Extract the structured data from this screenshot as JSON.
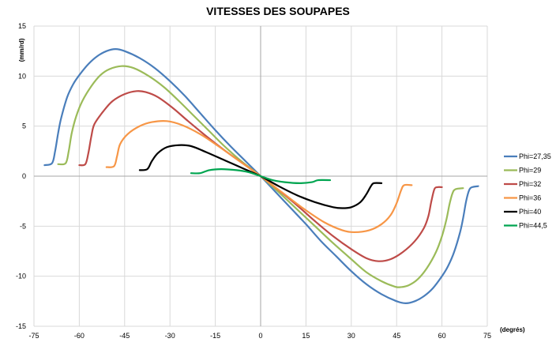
{
  "chart_data": {
    "type": "line",
    "title": "VITESSES DES SOUPAPES",
    "xlabel": "(degrés)",
    "ylabel": "(mm/rd)",
    "xlim": [
      -75,
      75
    ],
    "ylim": [
      -15,
      15
    ],
    "xticks": [
      -75,
      -60,
      -45,
      -30,
      -15,
      0,
      15,
      30,
      45,
      60,
      75
    ],
    "xtick_labels": [
      "-75",
      "-60",
      "-45",
      "-30",
      "-15",
      "0",
      "15",
      "30",
      "45",
      "60",
      "75"
    ],
    "yticks": [
      -15,
      -10,
      -5,
      0,
      5,
      10,
      15
    ],
    "ytick_labels": [
      "-15",
      "-10",
      "-5",
      "0",
      "5",
      "10",
      "15"
    ],
    "grid": true,
    "legend_position": "right",
    "series": [
      {
        "name": "Phi=27,35",
        "color": "#4a7ebb",
        "points": [
          [
            -71.5,
            1.1
          ],
          [
            -69,
            1.3
          ],
          [
            -68,
            2.5
          ],
          [
            -67,
            4.3
          ],
          [
            -66,
            5.8
          ],
          [
            -64,
            7.9
          ],
          [
            -62,
            9.2
          ],
          [
            -60,
            10.1
          ],
          [
            -57,
            11.2
          ],
          [
            -54,
            12.0
          ],
          [
            -51,
            12.5
          ],
          [
            -48,
            12.7
          ],
          [
            -45,
            12.5
          ],
          [
            -40,
            11.8
          ],
          [
            -35,
            10.8
          ],
          [
            -30,
            9.5
          ],
          [
            -25,
            8.0
          ],
          [
            -20,
            6.3
          ],
          [
            -15,
            4.6
          ],
          [
            -10,
            3.0
          ],
          [
            -5,
            1.5
          ],
          [
            0,
            0
          ],
          [
            5,
            -1.6
          ],
          [
            10,
            -3.2
          ],
          [
            15,
            -4.8
          ],
          [
            20,
            -6.5
          ],
          [
            25,
            -8.0
          ],
          [
            30,
            -9.5
          ],
          [
            35,
            -10.8
          ],
          [
            40,
            -11.8
          ],
          [
            45,
            -12.5
          ],
          [
            48,
            -12.7
          ],
          [
            51,
            -12.5
          ],
          [
            54,
            -12.0
          ],
          [
            57,
            -11.2
          ],
          [
            60,
            -10.0
          ],
          [
            62,
            -9.0
          ],
          [
            64,
            -7.6
          ],
          [
            66,
            -5.6
          ],
          [
            67,
            -4.2
          ],
          [
            68,
            -2.5
          ],
          [
            69,
            -1.4
          ],
          [
            70,
            -1.1
          ],
          [
            72,
            -1.0
          ]
        ]
      },
      {
        "name": "Phi=29",
        "color": "#9bbb59",
        "points": [
          [
            -67,
            1.2
          ],
          [
            -64.5,
            1.3
          ],
          [
            -63.5,
            2.5
          ],
          [
            -62.5,
            4.3
          ],
          [
            -61,
            6.0
          ],
          [
            -59,
            7.5
          ],
          [
            -56,
            9.0
          ],
          [
            -53,
            10.1
          ],
          [
            -50,
            10.7
          ],
          [
            -46,
            11.0
          ],
          [
            -42,
            10.8
          ],
          [
            -37,
            10.0
          ],
          [
            -32,
            8.9
          ],
          [
            -27,
            7.5
          ],
          [
            -22,
            6.0
          ],
          [
            -17,
            4.5
          ],
          [
            -12,
            3.0
          ],
          [
            -6,
            1.4
          ],
          [
            0,
            0
          ],
          [
            6,
            -1.6
          ],
          [
            12,
            -3.3
          ],
          [
            18,
            -5.0
          ],
          [
            24,
            -6.7
          ],
          [
            30,
            -8.3
          ],
          [
            35,
            -9.6
          ],
          [
            40,
            -10.5
          ],
          [
            44,
            -11.0
          ],
          [
            46,
            -11.1
          ],
          [
            49,
            -10.9
          ],
          [
            52,
            -10.3
          ],
          [
            55,
            -9.2
          ],
          [
            58,
            -7.6
          ],
          [
            60,
            -6.0
          ],
          [
            61.5,
            -4.3
          ],
          [
            62.5,
            -2.8
          ],
          [
            63.5,
            -1.7
          ],
          [
            64.5,
            -1.3
          ],
          [
            67,
            -1.2
          ]
        ]
      },
      {
        "name": "Phi=32",
        "color": "#be4b48",
        "points": [
          [
            -60,
            1.1
          ],
          [
            -58,
            1.2
          ],
          [
            -57,
            2.3
          ],
          [
            -56,
            4.0
          ],
          [
            -55,
            5.2
          ],
          [
            -52,
            6.5
          ],
          [
            -49,
            7.5
          ],
          [
            -45,
            8.2
          ],
          [
            -41,
            8.5
          ],
          [
            -38,
            8.4
          ],
          [
            -34,
            7.9
          ],
          [
            -29,
            6.8
          ],
          [
            -24,
            5.5
          ],
          [
            -18,
            4.0
          ],
          [
            -12,
            2.6
          ],
          [
            -6,
            1.3
          ],
          [
            0,
            0
          ],
          [
            6,
            -1.4
          ],
          [
            12,
            -2.9
          ],
          [
            18,
            -4.5
          ],
          [
            24,
            -6.0
          ],
          [
            30,
            -7.3
          ],
          [
            35,
            -8.2
          ],
          [
            39,
            -8.5
          ],
          [
            43,
            -8.3
          ],
          [
            47,
            -7.6
          ],
          [
            51,
            -6.5
          ],
          [
            54,
            -5.2
          ],
          [
            55.5,
            -4.0
          ],
          [
            56.5,
            -2.5
          ],
          [
            57.5,
            -1.3
          ],
          [
            58.5,
            -1.1
          ],
          [
            60,
            -1.1
          ]
        ]
      },
      {
        "name": "Phi=36",
        "color": "#f79646",
        "points": [
          [
            -51,
            0.9
          ],
          [
            -48.5,
            1.0
          ],
          [
            -47.5,
            2.0
          ],
          [
            -46.5,
            3.2
          ],
          [
            -44,
            4.2
          ],
          [
            -40,
            5.0
          ],
          [
            -36,
            5.4
          ],
          [
            -31,
            5.5
          ],
          [
            -26,
            5.1
          ],
          [
            -20,
            4.2
          ],
          [
            -14,
            3.0
          ],
          [
            -7,
            1.5
          ],
          [
            0,
            0
          ],
          [
            7,
            -1.6
          ],
          [
            14,
            -3.2
          ],
          [
            21,
            -4.6
          ],
          [
            27,
            -5.4
          ],
          [
            31,
            -5.6
          ],
          [
            36,
            -5.4
          ],
          [
            40,
            -4.8
          ],
          [
            43,
            -3.9
          ],
          [
            45,
            -2.7
          ],
          [
            46.5,
            -1.4
          ],
          [
            47.5,
            -0.9
          ],
          [
            50,
            -0.9
          ]
        ]
      },
      {
        "name": "Phi=40",
        "color": "#000000",
        "points": [
          [
            -40,
            0.6
          ],
          [
            -37.5,
            0.7
          ],
          [
            -36,
            1.5
          ],
          [
            -34,
            2.3
          ],
          [
            -31,
            2.9
          ],
          [
            -27,
            3.1
          ],
          [
            -23,
            3.0
          ],
          [
            -18,
            2.4
          ],
          [
            -12,
            1.6
          ],
          [
            -6,
            0.8
          ],
          [
            0,
            0
          ],
          [
            6,
            -1.0
          ],
          [
            12,
            -1.9
          ],
          [
            18,
            -2.6
          ],
          [
            24,
            -3.1
          ],
          [
            27,
            -3.2
          ],
          [
            30,
            -3.1
          ],
          [
            33,
            -2.6
          ],
          [
            35,
            -1.8
          ],
          [
            36.5,
            -1.0
          ],
          [
            37.5,
            -0.7
          ],
          [
            40,
            -0.7
          ]
        ]
      },
      {
        "name": "Phi=44,5",
        "color": "#00a550",
        "points": [
          [
            -23,
            0.3
          ],
          [
            -20,
            0.3
          ],
          [
            -17,
            0.6
          ],
          [
            -13,
            0.7
          ],
          [
            -8,
            0.6
          ],
          [
            -4,
            0.4
          ],
          [
            0,
            0
          ],
          [
            4,
            -0.4
          ],
          [
            8,
            -0.6
          ],
          [
            13,
            -0.7
          ],
          [
            17,
            -0.6
          ],
          [
            19,
            -0.4
          ],
          [
            23,
            -0.4
          ]
        ]
      }
    ]
  }
}
